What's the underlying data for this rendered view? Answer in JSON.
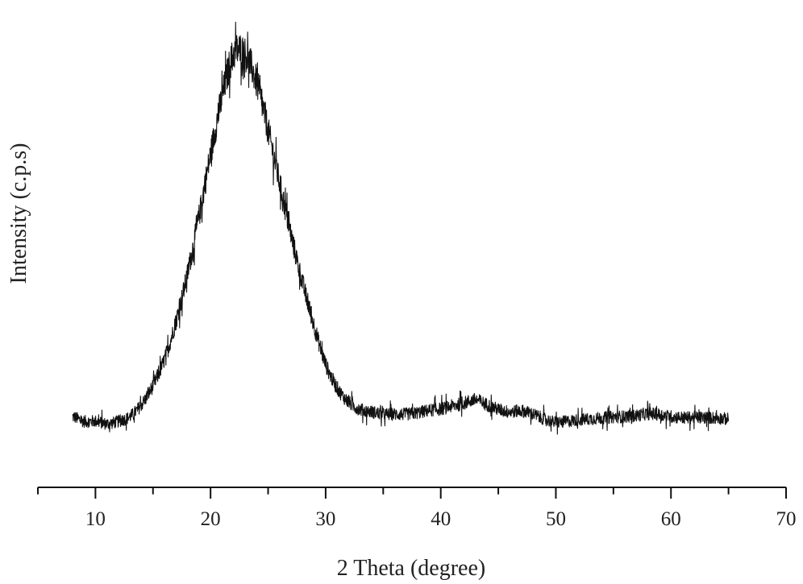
{
  "chart_data": {
    "type": "line",
    "title": "",
    "xlabel": "2 Theta (degree)",
    "ylabel": "Intensity (c.p.s)",
    "xlim": [
      5,
      70
    ],
    "ylim": [
      0,
      100
    ],
    "xticks": [
      10,
      20,
      30,
      40,
      50,
      60,
      70
    ],
    "xtick_labels": [
      "10",
      "20",
      "30",
      "40",
      "50",
      "60",
      "70"
    ],
    "y_tick_labels_shown": false,
    "grid": false,
    "legend": "none",
    "line_color": "#111111",
    "series": [
      {
        "name": "",
        "x": [
          8,
          9,
          10,
          11,
          12,
          13,
          14,
          15,
          16,
          17,
          18,
          19,
          20,
          21,
          22,
          23,
          24,
          25,
          26,
          27,
          28,
          29,
          30,
          31,
          32,
          33,
          34,
          35,
          36,
          37,
          38,
          39,
          40,
          41,
          42,
          43,
          44,
          45,
          46,
          47,
          48,
          49,
          50,
          51,
          52,
          53,
          54,
          55,
          56,
          57,
          58,
          59,
          60,
          61,
          62,
          63,
          64,
          65
        ],
        "y": [
          14,
          13,
          13,
          12.5,
          13,
          14,
          16.5,
          20.5,
          26,
          34,
          44,
          56,
          69,
          81,
          90,
          90,
          84,
          74,
          63,
          52,
          42,
          33,
          25,
          20,
          17,
          15.5,
          15,
          14.5,
          14.5,
          14.5,
          14.8,
          15.3,
          15.6,
          16.2,
          16.8,
          17.5,
          16.5,
          15.5,
          15,
          15.2,
          14.5,
          13.5,
          12.8,
          13,
          13.3,
          13.5,
          13.7,
          13.9,
          14,
          14.2,
          14.6,
          14.4,
          14,
          13.8,
          13.8,
          13.8,
          13.7,
          13.5
        ]
      }
    ]
  }
}
